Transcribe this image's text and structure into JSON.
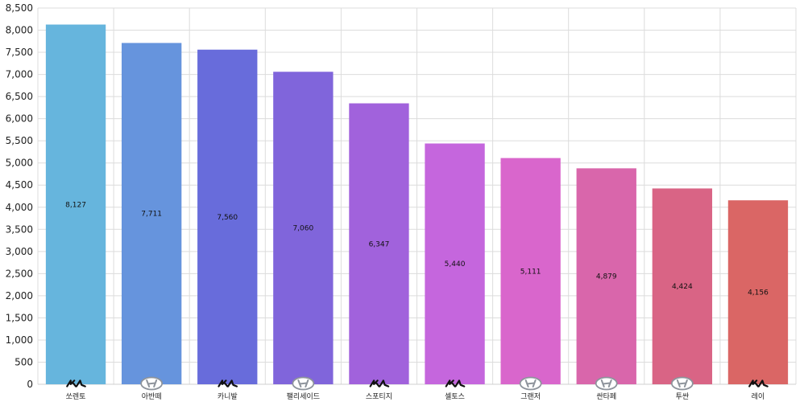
{
  "chart_data": {
    "type": "bar",
    "categories": [
      "쏘렌토",
      "아반떼",
      "카니발",
      "팰리세이드",
      "스포티지",
      "셀토스",
      "그랜저",
      "싼타페",
      "투싼",
      "레이"
    ],
    "values": [
      8127,
      7711,
      7560,
      7060,
      6347,
      5440,
      5111,
      4879,
      4424,
      4156
    ],
    "value_labels": [
      "8,127",
      "7,711",
      "7,560",
      "7,060",
      "6,347",
      "5,440",
      "5,111",
      "4,879",
      "4,424",
      "4,156"
    ],
    "brands": [
      "kia",
      "hyundai",
      "kia",
      "hyundai",
      "kia",
      "kia",
      "hyundai",
      "hyundai",
      "hyundai",
      "kia"
    ],
    "brand_icons": [
      "kia-logo-icon",
      "hyundai-logo-icon",
      "kia-logo-icon",
      "hyundai-logo-icon",
      "kia-logo-icon",
      "kia-logo-icon",
      "hyundai-logo-icon",
      "hyundai-logo-icon",
      "hyundai-logo-icon",
      "kia-logo-icon"
    ],
    "colors": [
      "#66b5dd",
      "#6694dd",
      "#686cdb",
      "#8065db",
      "#a162dc",
      "#c566dd",
      "#d966cc",
      "#d966ab",
      "#d96485",
      "#da6665"
    ],
    "yticks": [
      "0",
      "500",
      "1,000",
      "1,500",
      "2,000",
      "2,500",
      "3,000",
      "3,500",
      "4,000",
      "4,500",
      "5,000",
      "5,500",
      "6,000",
      "6,500",
      "7,000",
      "7,500",
      "8,000",
      "8,500"
    ],
    "ylim": [
      0,
      8500
    ],
    "grid": true,
    "legend": "none",
    "title": "",
    "xlabel": "",
    "ylabel": ""
  }
}
